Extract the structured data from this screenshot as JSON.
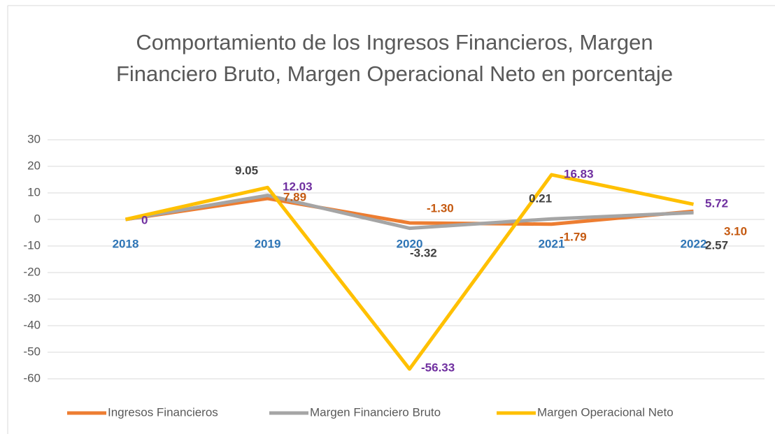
{
  "chart_data": {
    "type": "line",
    "title": "Comportamiento de los Ingresos Financieros, Margen Financiero Bruto, Margen Operacional Neto en porcentaje",
    "categories": [
      "2018",
      "2019",
      "2020",
      "2021",
      "2022"
    ],
    "series": [
      {
        "name": "Ingresos Financieros",
        "color": "#ed7d31",
        "label_color": "#c55a11",
        "values": [
          0,
          7.89,
          -1.3,
          -1.79,
          3.1
        ],
        "value_labels": [
          null,
          "7.89",
          "-1.30",
          "-1.79",
          "3.10"
        ]
      },
      {
        "name": "Margen Financiero Bruto",
        "color": "#a5a5a5",
        "label_color": "#404040",
        "values": [
          0,
          9.05,
          -3.32,
          0.21,
          2.57
        ],
        "value_labels": [
          null,
          "9.05",
          "-3.32",
          "0.21",
          "2.57"
        ]
      },
      {
        "name": "Margen Operacional Neto",
        "color": "#ffc000",
        "label_color": "#7030a0",
        "values": [
          0,
          12.03,
          -56.33,
          16.83,
          5.72
        ],
        "value_labels": [
          "0",
          "12.03",
          "-56.33",
          "16.83",
          "5.72"
        ]
      }
    ],
    "ylim": [
      -60,
      30
    ],
    "yticks": [
      -60,
      -50,
      -40,
      -30,
      -20,
      -10,
      0,
      10,
      20,
      30
    ],
    "grid": true,
    "legend": "bottom"
  }
}
